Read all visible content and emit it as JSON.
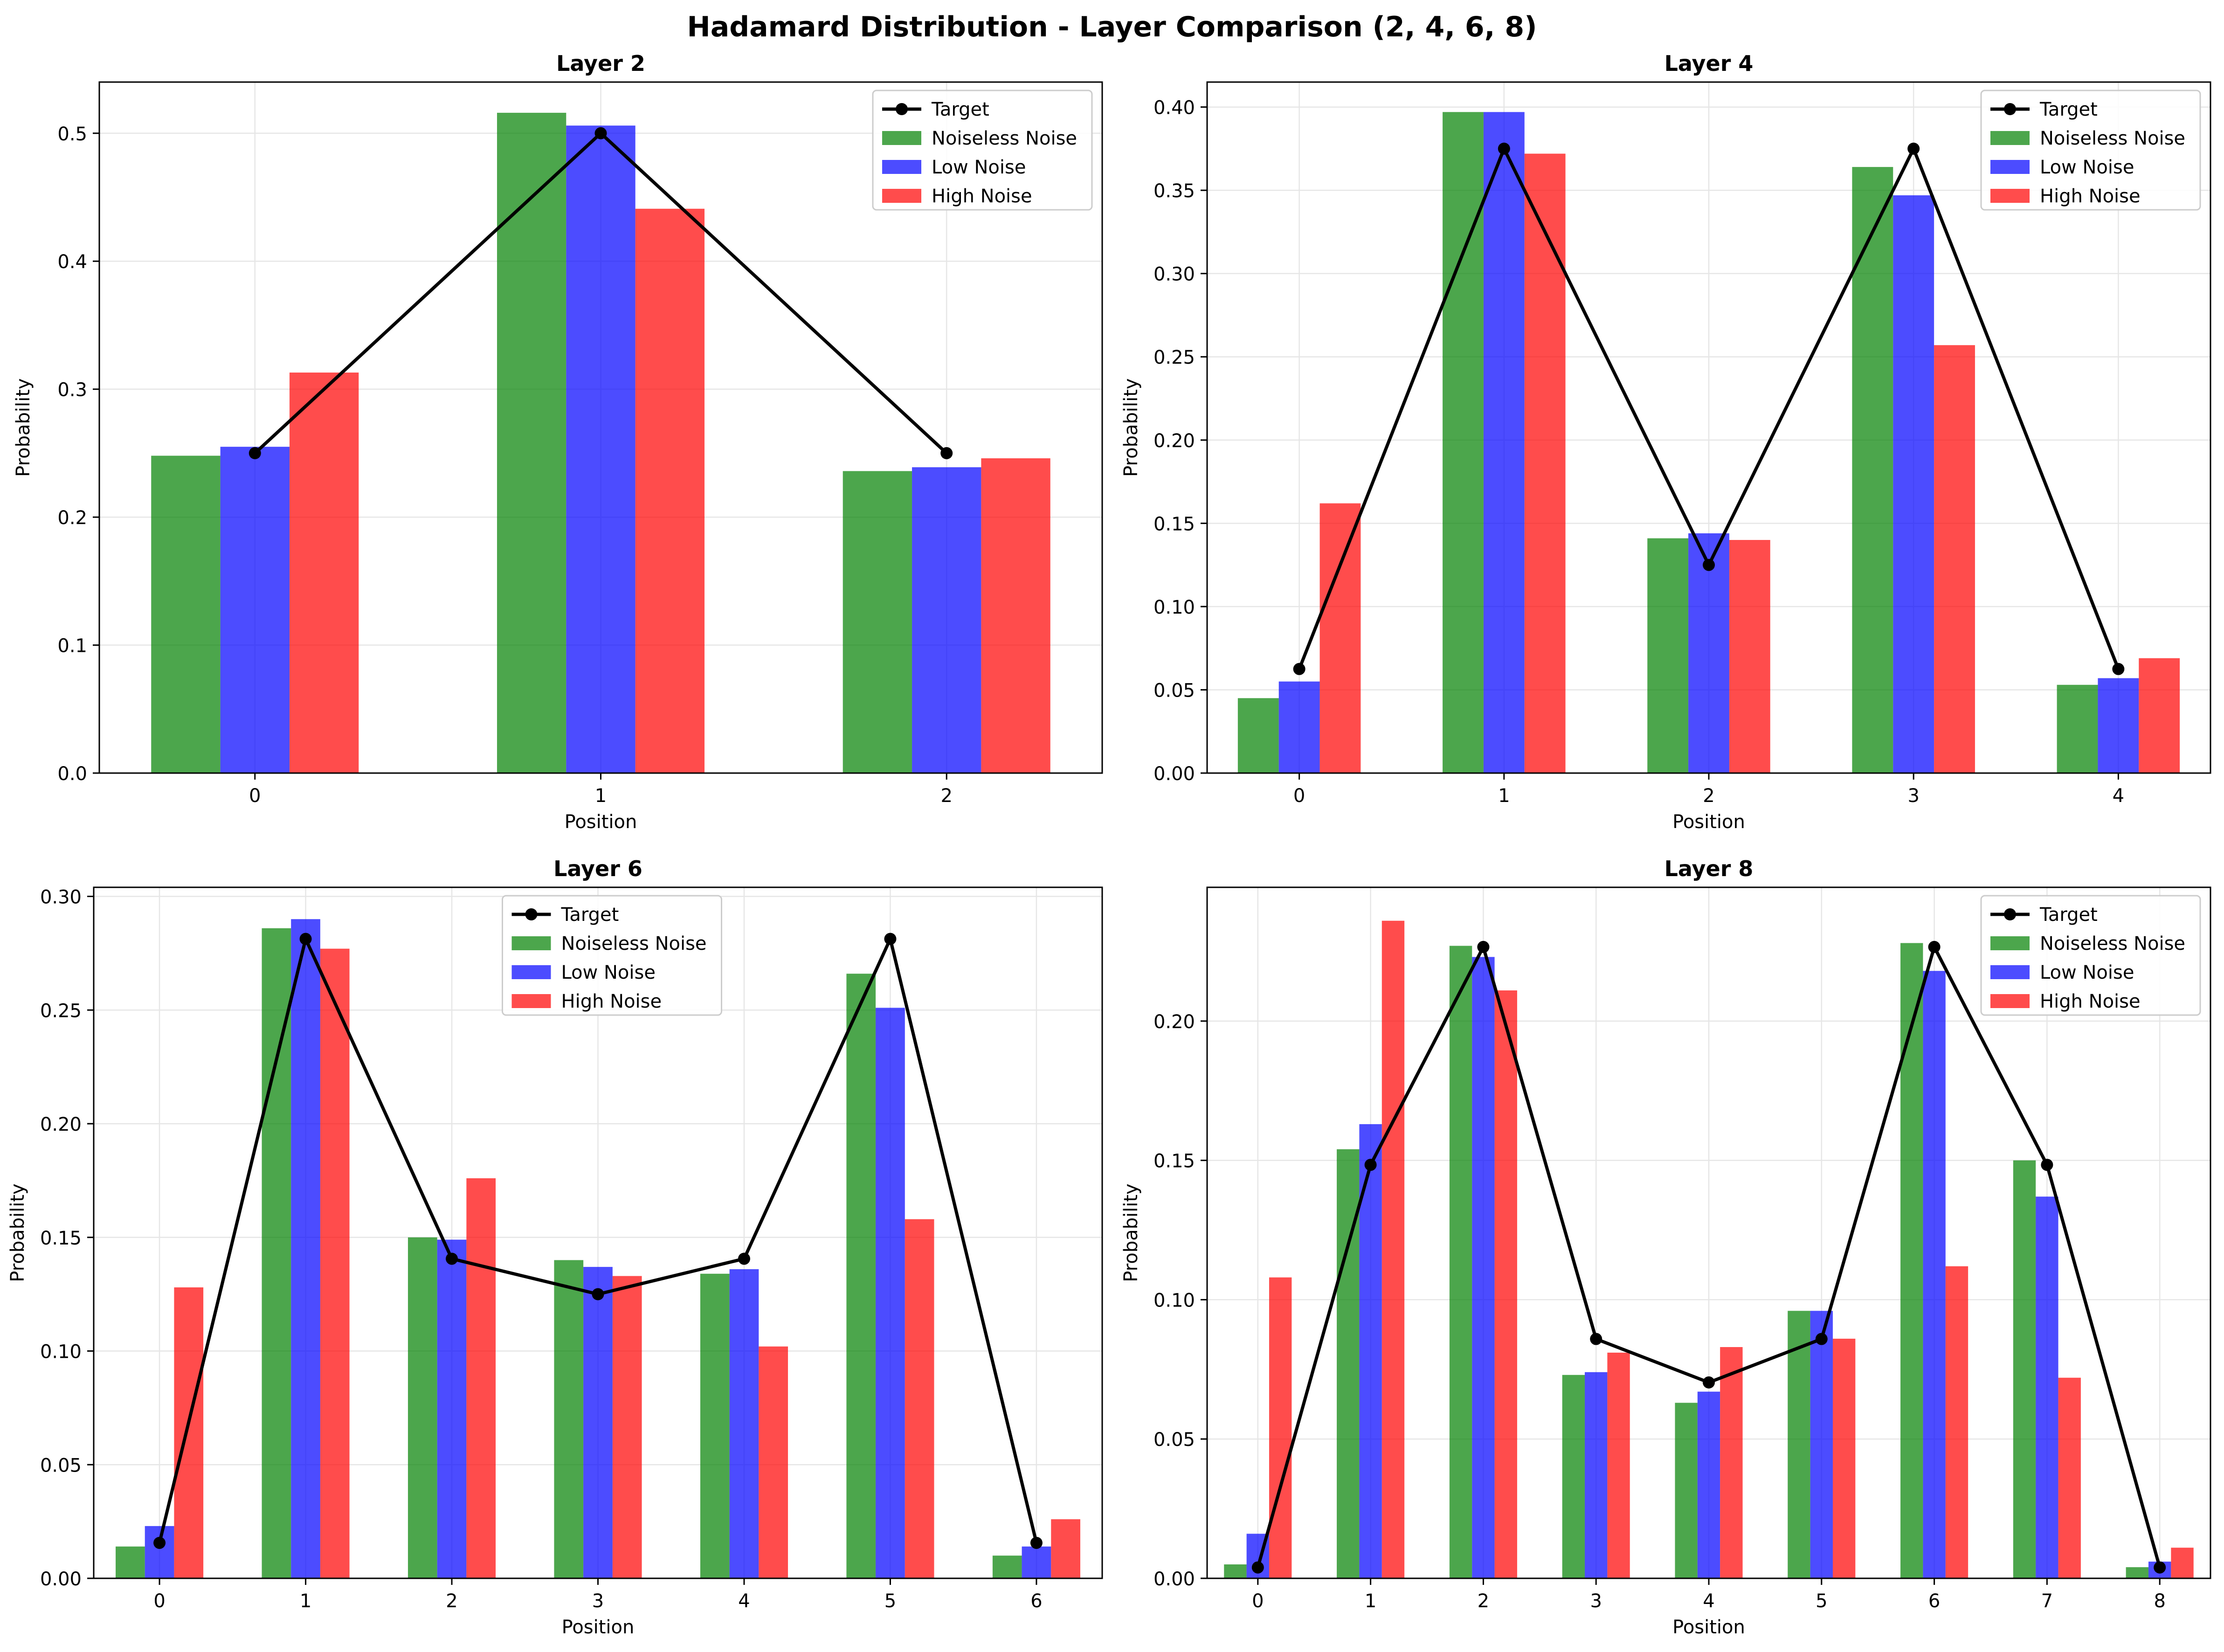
{
  "figure_title": "Hadamard Distribution - Layer Comparison (2, 4, 6, 8)",
  "colors": {
    "target": "#000000",
    "noiseless": "#008000",
    "low": "#0000ff",
    "high": "#ff0000",
    "grid": "#e6e6e6"
  },
  "legend_labels": [
    "Target",
    "Noiseless Noise",
    "Low Noise",
    "High Noise"
  ],
  "chart_data": [
    {
      "type": "bar",
      "title": "Layer 2",
      "xlabel": "Position",
      "ylabel": "Probability",
      "categories": [
        "0",
        "1",
        "2"
      ],
      "ylim": [
        0,
        0.54
      ],
      "yticks": [
        0.0,
        0.1,
        0.2,
        0.3,
        0.4,
        0.5
      ],
      "ytick_labels": [
        "0.0",
        "0.1",
        "0.2",
        "0.3",
        "0.4",
        "0.5"
      ],
      "grid": true,
      "legend_position": "top-right",
      "series": [
        {
          "name": "Noiseless Noise",
          "kind": "bar",
          "values": [
            0.248,
            0.516,
            0.236
          ]
        },
        {
          "name": "Low Noise",
          "kind": "bar",
          "values": [
            0.255,
            0.506,
            0.239
          ]
        },
        {
          "name": "High Noise",
          "kind": "bar",
          "values": [
            0.313,
            0.441,
            0.246
          ]
        },
        {
          "name": "Target",
          "kind": "line",
          "values": [
            0.25,
            0.5,
            0.25
          ]
        }
      ]
    },
    {
      "type": "bar",
      "title": "Layer 4",
      "xlabel": "Position",
      "ylabel": "Probability",
      "categories": [
        "0",
        "1",
        "2",
        "3",
        "4"
      ],
      "ylim": [
        0,
        0.415
      ],
      "yticks": [
        0.0,
        0.05,
        0.1,
        0.15,
        0.2,
        0.25,
        0.3,
        0.35,
        0.4
      ],
      "ytick_labels": [
        "0.00",
        "0.05",
        "0.10",
        "0.15",
        "0.20",
        "0.25",
        "0.30",
        "0.35",
        "0.40"
      ],
      "grid": true,
      "legend_position": "top-right",
      "series": [
        {
          "name": "Noiseless Noise",
          "kind": "bar",
          "values": [
            0.045,
            0.397,
            0.141,
            0.364,
            0.053
          ]
        },
        {
          "name": "Low Noise",
          "kind": "bar",
          "values": [
            0.055,
            0.397,
            0.144,
            0.347,
            0.057
          ]
        },
        {
          "name": "High Noise",
          "kind": "bar",
          "values": [
            0.162,
            0.372,
            0.14,
            0.257,
            0.069
          ]
        },
        {
          "name": "Target",
          "kind": "line",
          "values": [
            0.0625,
            0.375,
            0.125,
            0.375,
            0.0625
          ]
        }
      ]
    },
    {
      "type": "bar",
      "title": "Layer 6",
      "xlabel": "Position",
      "ylabel": "Probability",
      "categories": [
        "0",
        "1",
        "2",
        "3",
        "4",
        "5",
        "6"
      ],
      "ylim": [
        0,
        0.304
      ],
      "yticks": [
        0.0,
        0.05,
        0.1,
        0.15,
        0.2,
        0.25,
        0.3
      ],
      "ytick_labels": [
        "0.00",
        "0.05",
        "0.10",
        "0.15",
        "0.20",
        "0.25",
        "0.30"
      ],
      "grid": true,
      "legend_position": "top-center",
      "series": [
        {
          "name": "Noiseless Noise",
          "kind": "bar",
          "values": [
            0.014,
            0.286,
            0.15,
            0.14,
            0.134,
            0.266,
            0.01
          ]
        },
        {
          "name": "Low Noise",
          "kind": "bar",
          "values": [
            0.023,
            0.29,
            0.149,
            0.137,
            0.136,
            0.251,
            0.014
          ]
        },
        {
          "name": "High Noise",
          "kind": "bar",
          "values": [
            0.128,
            0.277,
            0.176,
            0.133,
            0.102,
            0.158,
            0.026
          ]
        },
        {
          "name": "Target",
          "kind": "line",
          "values": [
            0.0156,
            0.2813,
            0.1406,
            0.125,
            0.1406,
            0.2813,
            0.0156
          ]
        }
      ]
    },
    {
      "type": "bar",
      "title": "Layer 8",
      "xlabel": "Position",
      "ylabel": "Probability",
      "categories": [
        "0",
        "1",
        "2",
        "3",
        "4",
        "5",
        "6",
        "7",
        "8"
      ],
      "ylim": [
        0,
        0.248
      ],
      "yticks": [
        0.0,
        0.05,
        0.1,
        0.15,
        0.2
      ],
      "ytick_labels": [
        "0.00",
        "0.05",
        "0.10",
        "0.15",
        "0.20"
      ],
      "grid": true,
      "legend_position": "top-right",
      "series": [
        {
          "name": "Noiseless Noise",
          "kind": "bar",
          "values": [
            0.005,
            0.154,
            0.227,
            0.073,
            0.063,
            0.096,
            0.228,
            0.15,
            0.004
          ]
        },
        {
          "name": "Low Noise",
          "kind": "bar",
          "values": [
            0.016,
            0.163,
            0.223,
            0.074,
            0.067,
            0.096,
            0.218,
            0.137,
            0.006
          ]
        },
        {
          "name": "High Noise",
          "kind": "bar",
          "values": [
            0.108,
            0.236,
            0.211,
            0.081,
            0.083,
            0.086,
            0.112,
            0.072,
            0.011
          ]
        },
        {
          "name": "Target",
          "kind": "line",
          "values": [
            0.0039,
            0.1484,
            0.2266,
            0.0859,
            0.0703,
            0.0859,
            0.2266,
            0.1484,
            0.0039
          ]
        }
      ]
    }
  ]
}
